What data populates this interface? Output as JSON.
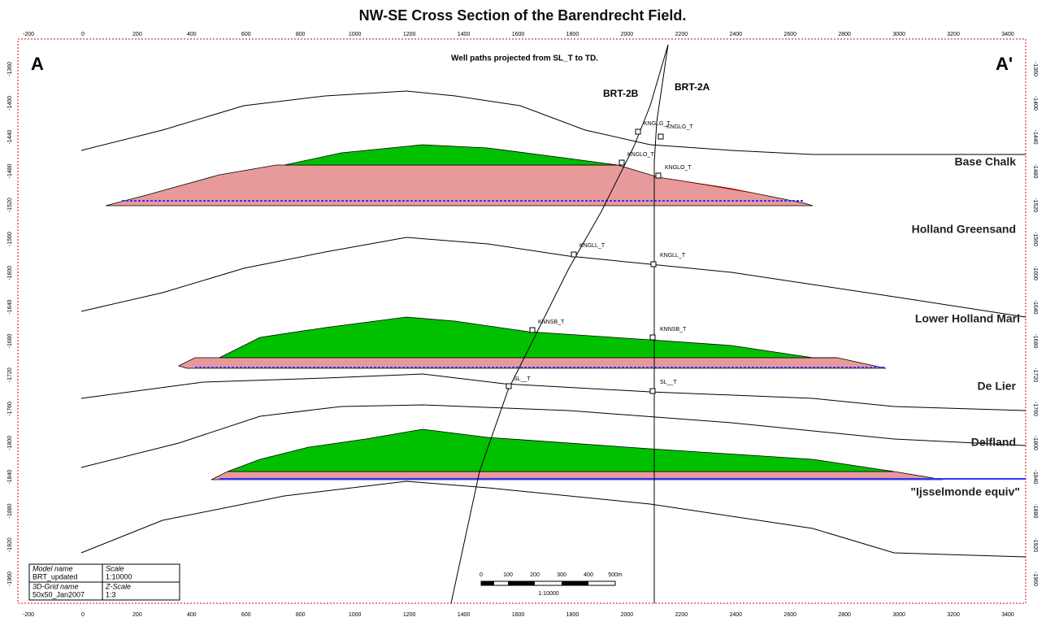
{
  "title": "NW-SE Cross Section of the Barendrecht Field.",
  "section_start": "A",
  "section_end": "A'",
  "note": "Well paths projected from SL_T to TD.",
  "wells": [
    "BRT-2B",
    "BRT-2A"
  ],
  "formations": [
    "Base Chalk",
    "Holland Greensand",
    "Lower Holland Marl",
    "De Lier",
    "Delfland",
    "\"Ijsselmonde equiv\""
  ],
  "markers": [
    "KNGLG_T",
    "KNGLG_T",
    "KNGLO_T",
    "KNGLO_T",
    "KNGLL_T",
    "KNGLL_T",
    "KNNSB_T",
    "KNNSB_T",
    "SL__T",
    "SL__T"
  ],
  "x_axis": {
    "labels": [
      "-200",
      "0",
      "200",
      "400",
      "600",
      "800",
      "1000",
      "1200",
      "1400",
      "1600",
      "1800",
      "2000",
      "2200",
      "2400",
      "2600",
      "2800",
      "3000",
      "3200",
      "3400"
    ]
  },
  "y_axis": {
    "labels": [
      "-1360",
      "-1400",
      "-1440",
      "-1480",
      "-1520",
      "-1560",
      "-1600",
      "-1640",
      "-1680",
      "-1720",
      "-1760",
      "-1800",
      "-1840",
      "-1880",
      "-1920",
      "-1960"
    ]
  },
  "info_box": {
    "rows": [
      [
        "Model name",
        "Scale"
      ],
      [
        "BRT_updated",
        "1:10000"
      ],
      [
        "3D-Grid name",
        "Z-Scale"
      ],
      [
        "50x50_Jan2007",
        "1:3"
      ]
    ]
  },
  "scale_bar": {
    "labels": [
      "0",
      "100",
      "200",
      "300",
      "400",
      "500m"
    ],
    "ratio": "1:10000"
  }
}
